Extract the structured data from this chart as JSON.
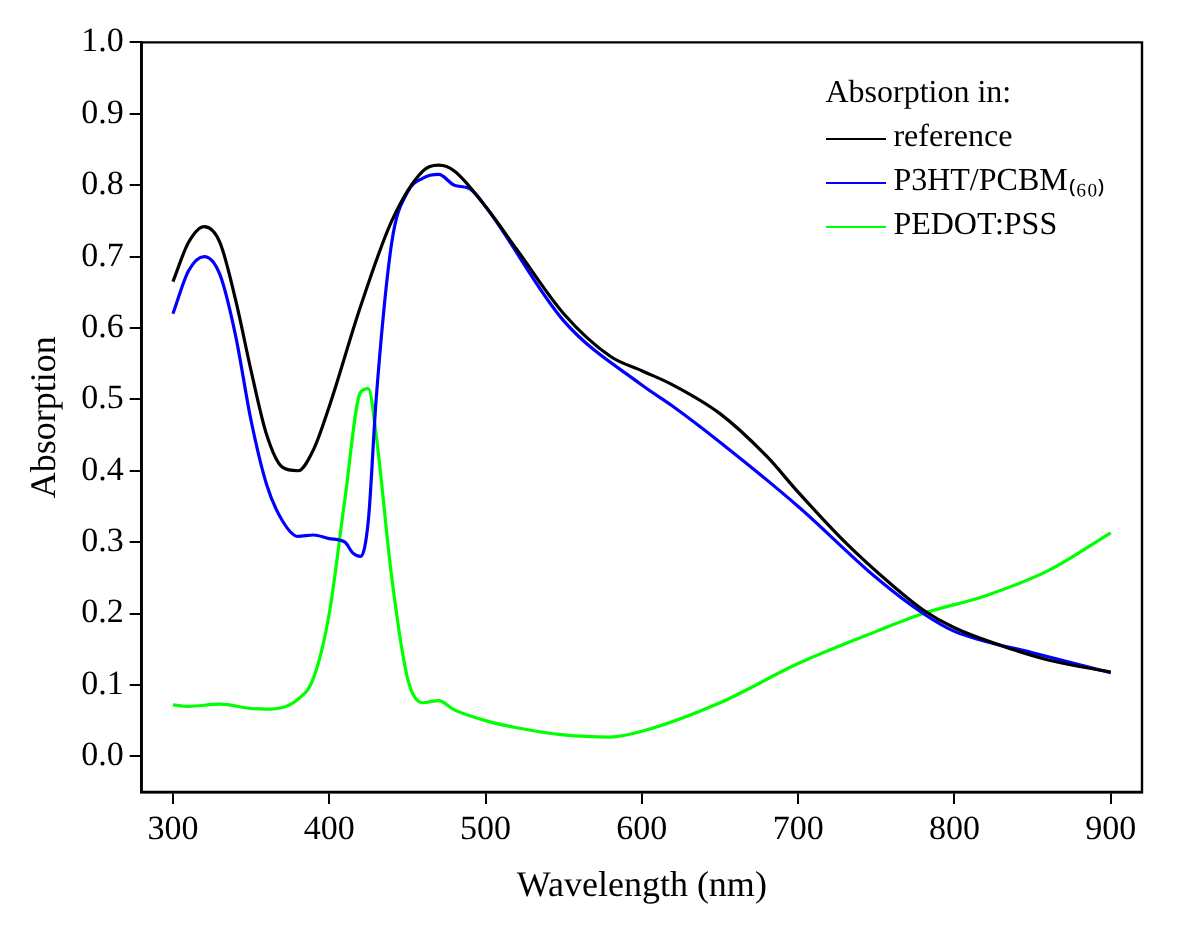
{
  "chart_data": {
    "type": "line",
    "xlabel": "Wavelength (nm)",
    "ylabel": "Absorption",
    "legend_title": "Absorption in:",
    "legend": "top right",
    "grid": false,
    "marker": "none",
    "line_style": "solid",
    "xlim": [
      280,
      920
    ],
    "xticks": [
      300,
      400,
      500,
      600,
      700,
      800,
      900
    ],
    "ylim": [
      -0.05,
      1.0
    ],
    "yticks": [
      {
        "value": 0,
        "label": "0.0"
      },
      0.1,
      0.2,
      0.3,
      0.4,
      0.5,
      0.6,
      0.7,
      0.8,
      0.9,
      {
        "value": 1,
        "label": "1.0"
      }
    ],
    "series": [
      {
        "name": "reference",
        "color": "#000000",
        "x": [
          300,
          310,
          320,
          330,
          340,
          350,
          360,
          370,
          380,
          390,
          400,
          420,
          440,
          460,
          470,
          480,
          500,
          520,
          550,
          580,
          600,
          620,
          650,
          680,
          700,
          730,
          760,
          780,
          800,
          830,
          860,
          900
        ],
        "values": [
          0.665,
          0.72,
          0.742,
          0.72,
          0.64,
          0.54,
          0.45,
          0.405,
          0.4,
          0.43,
          0.49,
          0.63,
          0.75,
          0.82,
          0.828,
          0.82,
          0.77,
          0.71,
          0.62,
          0.56,
          0.54,
          0.52,
          0.48,
          0.42,
          0.37,
          0.3,
          0.24,
          0.205,
          0.18,
          0.155,
          0.135,
          0.118
        ]
      },
      {
        "name": "P3HT/PCBM₍₆₀₎",
        "color": "#0000ff",
        "x": [
          300,
          310,
          320,
          330,
          340,
          350,
          360,
          370,
          380,
          390,
          400,
          410,
          415,
          420,
          425,
          430,
          440,
          450,
          460,
          470,
          480,
          490,
          500,
          550,
          600,
          620,
          650,
          700,
          750,
          780,
          800,
          850,
          900
        ],
        "values": [
          0.62,
          0.68,
          0.7,
          0.675,
          0.59,
          0.47,
          0.38,
          0.33,
          0.308,
          0.31,
          0.305,
          0.3,
          0.285,
          0.28,
          0.33,
          0.5,
          0.72,
          0.79,
          0.81,
          0.815,
          0.8,
          0.795,
          0.77,
          0.61,
          0.52,
          0.49,
          0.44,
          0.35,
          0.25,
          0.2,
          0.175,
          0.145,
          0.117
        ]
      },
      {
        "name": "PEDOT:PSS",
        "color": "#00ff00",
        "x": [
          300,
          310,
          330,
          350,
          360,
          380,
          390,
          400,
          410,
          420,
          425,
          430,
          440,
          450,
          460,
          470,
          480,
          500,
          520,
          550,
          580,
          600,
          650,
          700,
          750,
          780,
          820,
          860,
          900
        ],
        "values": [
          0.072,
          0.07,
          0.073,
          0.067,
          0.066,
          0.08,
          0.11,
          0.2,
          0.36,
          0.51,
          0.515,
          0.45,
          0.25,
          0.11,
          0.075,
          0.078,
          0.065,
          0.05,
          0.04,
          0.03,
          0.027,
          0.035,
          0.075,
          0.13,
          0.175,
          0.2,
          0.225,
          0.26,
          0.313
        ]
      }
    ]
  }
}
